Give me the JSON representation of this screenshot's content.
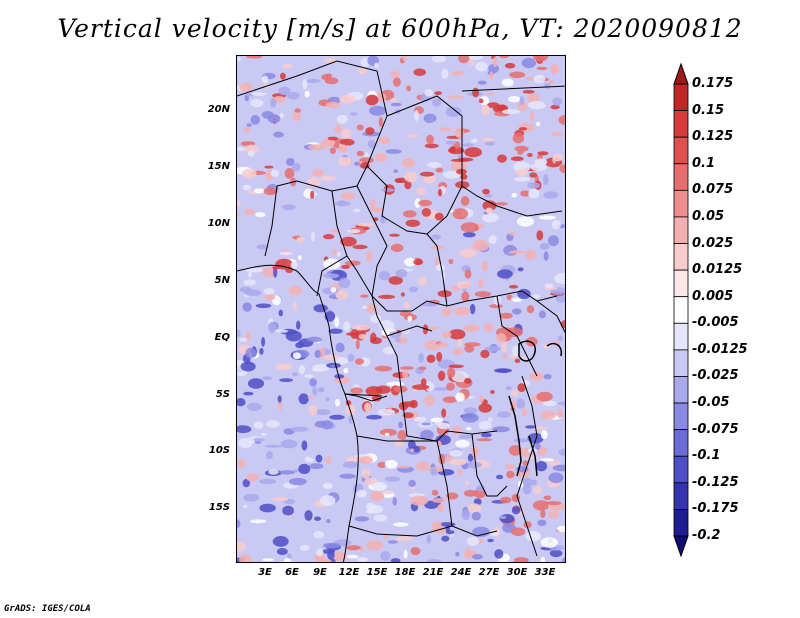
{
  "title": "Vertical velocity [m/s] at 600hPa, VT: 2020090812",
  "credit": "GrADS: IGES/COLA",
  "lat_labels": [
    "20N",
    "15N",
    "10N",
    "5N",
    "EQ",
    "5S",
    "10S",
    "15S"
  ],
  "lon_labels": [
    "3E",
    "6E",
    "9E",
    "12E",
    "15E",
    "18E",
    "21E",
    "24E",
    "27E",
    "30E",
    "33E"
  ],
  "colorbar": {
    "levels": [
      "0.175",
      "0.15",
      "0.125",
      "0.1",
      "0.075",
      "0.05",
      "0.025",
      "0.0125",
      "0.005",
      "-0.005",
      "-0.0125",
      "-0.025",
      "-0.05",
      "-0.075",
      "-0.1",
      "-0.125",
      "-0.175",
      "-0.2"
    ],
    "colors": [
      "#a01818",
      "#c02828",
      "#d63a3a",
      "#e05050",
      "#e66e6e",
      "#ee8f8f",
      "#f4b0b0",
      "#f8cccc",
      "#fce6e6",
      "#ffffff",
      "#e6e6fb",
      "#c9c9f4",
      "#a9a9ec",
      "#8a8ae3",
      "#6c6cd6",
      "#4f4fc6",
      "#3434b0",
      "#1e1e92",
      "#0e0e72"
    ]
  }
}
